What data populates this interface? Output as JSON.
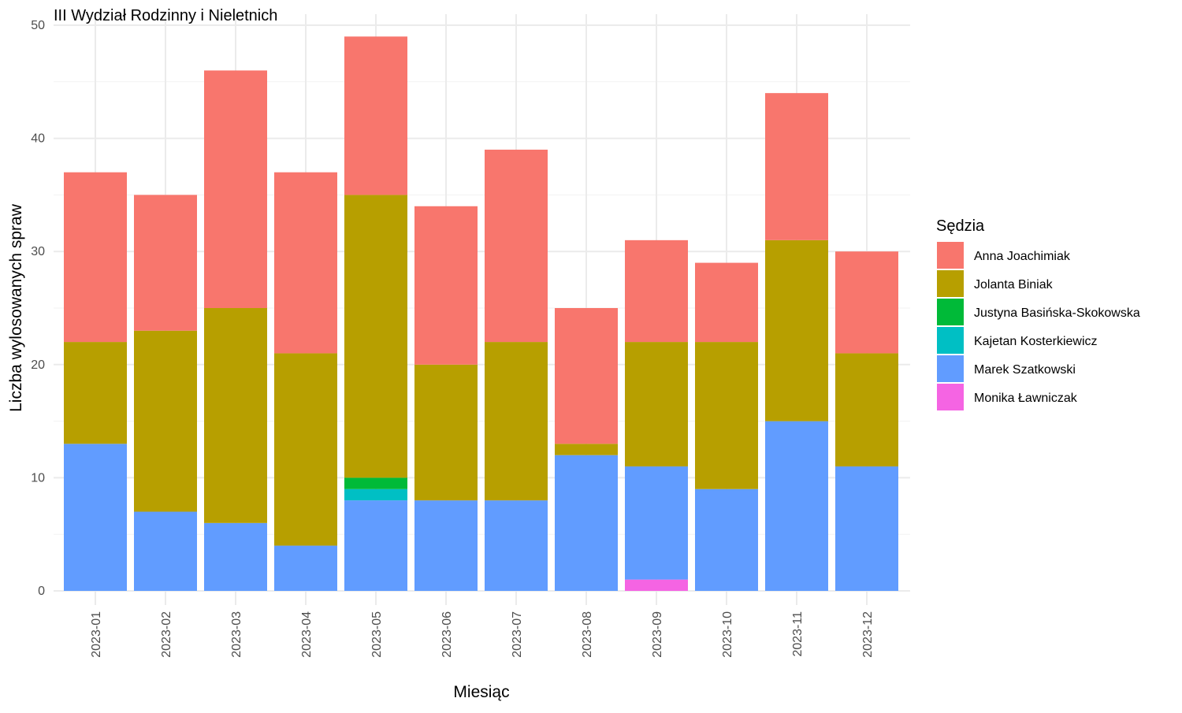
{
  "chart_data": {
    "type": "bar",
    "stacked": true,
    "title": "III Wydział Rodzinny i Nieletnich",
    "xlabel": "Miesiąc",
    "ylabel": "Liczba wylosowanych spraw",
    "ylim": [
      0,
      50
    ],
    "yticks": [
      0,
      10,
      20,
      30,
      40,
      50
    ],
    "grid": true,
    "legend_title": "Sędzia",
    "legend_position": "right",
    "categories": [
      "2023-01",
      "2023-02",
      "2023-03",
      "2023-04",
      "2023-05",
      "2023-06",
      "2023-07",
      "2023-08",
      "2023-09",
      "2023-10",
      "2023-11",
      "2023-12"
    ],
    "stack_order_bottom_to_top": [
      "Monika Ławniczak",
      "Marek Szatkowski",
      "Kajetan Kosterkiewicz",
      "Justyna Basińska-Skokowska",
      "Jolanta Biniak",
      "Anna Joachimiak"
    ],
    "series": [
      {
        "name": "Anna Joachimiak",
        "color": "#F8766D",
        "values": [
          15,
          12,
          21,
          16,
          14,
          14,
          17,
          12,
          9,
          7,
          13,
          9
        ]
      },
      {
        "name": "Jolanta Biniak",
        "color": "#B79F00",
        "values": [
          9,
          16,
          19,
          17,
          25,
          12,
          14,
          1,
          11,
          13,
          16,
          10
        ]
      },
      {
        "name": "Justyna Basińska-Skokowska",
        "color": "#00BA38",
        "values": [
          0,
          0,
          0,
          0,
          1,
          0,
          0,
          0,
          0,
          0,
          0,
          0
        ]
      },
      {
        "name": "Kajetan Kosterkiewicz",
        "color": "#00BFC4",
        "values": [
          0,
          0,
          0,
          0,
          1,
          0,
          0,
          0,
          0,
          0,
          0,
          0
        ]
      },
      {
        "name": "Marek Szatkowski",
        "color": "#619CFF",
        "values": [
          13,
          7,
          6,
          4,
          8,
          8,
          8,
          12,
          10,
          9,
          15,
          11
        ]
      },
      {
        "name": "Monika Ławniczak",
        "color": "#F564E3",
        "values": [
          0,
          0,
          0,
          0,
          0,
          0,
          0,
          0,
          1,
          0,
          0,
          0
        ]
      }
    ]
  }
}
